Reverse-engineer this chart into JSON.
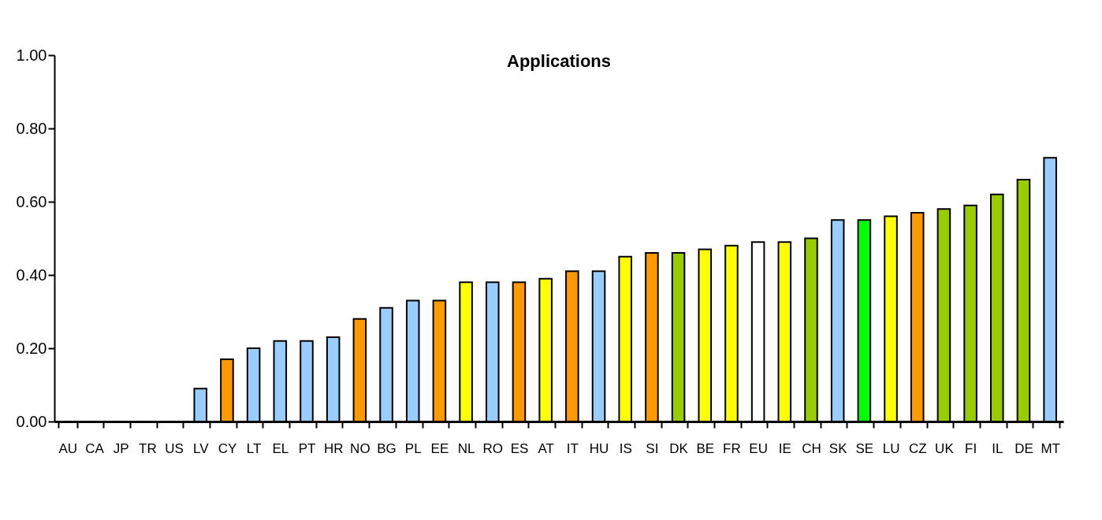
{
  "chart_data": {
    "type": "bar",
    "title": "Applications",
    "categories": [
      "AU",
      "CA",
      "JP",
      "TR",
      "US",
      "LV",
      "CY",
      "LT",
      "EL",
      "PT",
      "HR",
      "NO",
      "BG",
      "PL",
      "EE",
      "NL",
      "RO",
      "ES",
      "AT",
      "IT",
      "HU",
      "IS",
      "SI",
      "DK",
      "BE",
      "FR",
      "EU",
      "IE",
      "CH",
      "SK",
      "SE",
      "LU",
      "CZ",
      "UK",
      "FI",
      "IL",
      "DE",
      "MT"
    ],
    "values": [
      null,
      null,
      null,
      null,
      null,
      0.09,
      0.17,
      0.2,
      0.22,
      0.22,
      0.23,
      0.28,
      0.31,
      0.33,
      0.33,
      0.38,
      0.38,
      0.38,
      0.39,
      0.41,
      0.41,
      0.45,
      0.46,
      0.46,
      0.47,
      0.48,
      0.49,
      0.49,
      0.5,
      0.55,
      0.55,
      0.56,
      0.57,
      0.58,
      0.59,
      0.62,
      0.66,
      0.72
    ],
    "colors": [
      "#99ccff",
      "#99ccff",
      "#99ccff",
      "#99ccff",
      "#99ccff",
      "#99ccff",
      "#ff9900",
      "#99ccff",
      "#99ccff",
      "#99ccff",
      "#99ccff",
      "#ff9900",
      "#99ccff",
      "#99ccff",
      "#ff9900",
      "#ffff00",
      "#99ccff",
      "#ff9900",
      "#ffff00",
      "#ff9900",
      "#99ccff",
      "#ffff00",
      "#ff9900",
      "#99cc00",
      "#ffff00",
      "#ffff00",
      "#ffffff",
      "#ffff00",
      "#99cc00",
      "#99ccff",
      "#00ff00",
      "#ffff00",
      "#ff9900",
      "#99cc00",
      "#99cc00",
      "#99cc00",
      "#99cc00",
      "#99ccff"
    ],
    "ylim": [
      0,
      1
    ],
    "yticks": [
      {
        "value": 0,
        "label": "0.00"
      },
      {
        "value": 0.2,
        "label": "0.20"
      },
      {
        "value": 0.4,
        "label": "0.40"
      },
      {
        "value": 0.6,
        "label": "0.60"
      },
      {
        "value": 0.8,
        "label": "0.80"
      },
      {
        "value": 1,
        "label": "1.00"
      }
    ],
    "grid": false
  }
}
